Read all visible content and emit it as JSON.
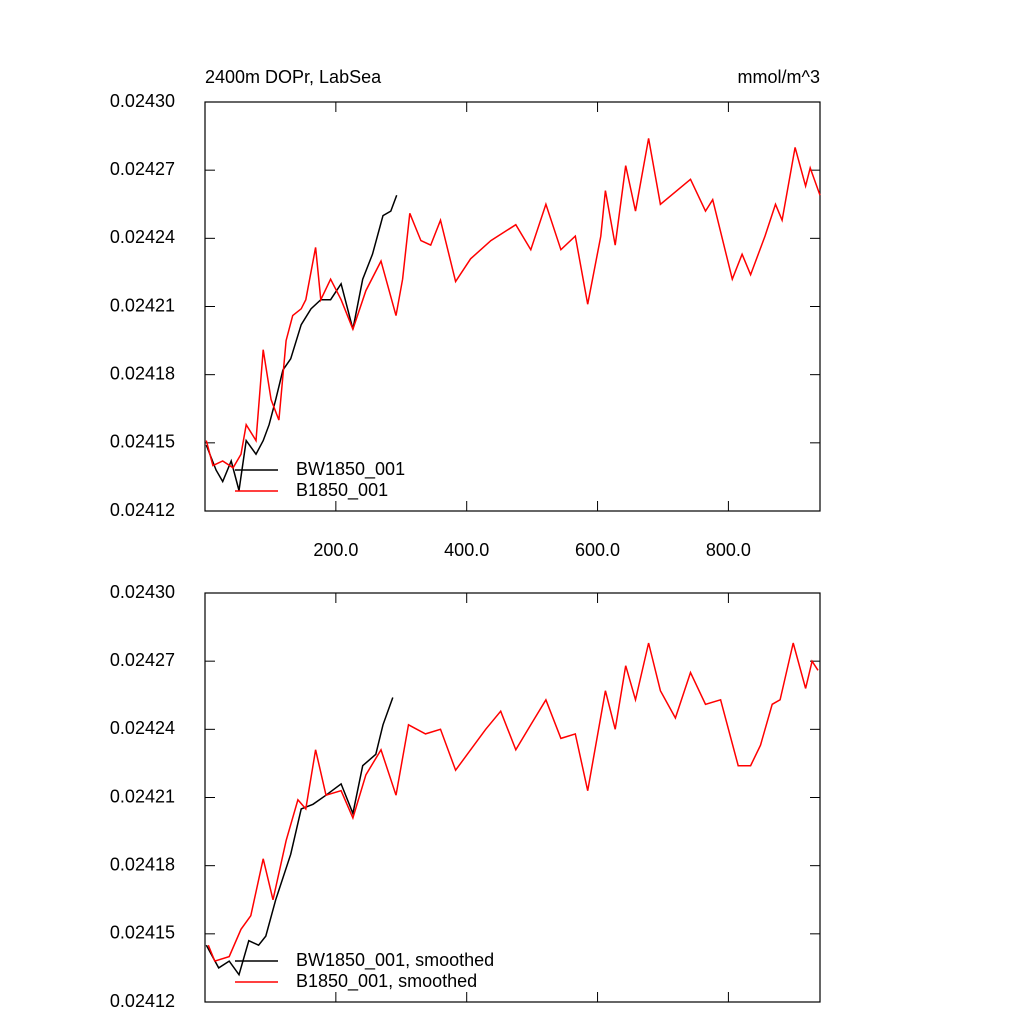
{
  "chart_data": [
    {
      "type": "line",
      "title": "2400m DOPr, LabSea",
      "units": "mmol/m^3",
      "xlim": [
        0,
        940
      ],
      "ylim": [
        0.02412,
        0.0243
      ],
      "xticks": [
        {
          "value": 200,
          "label": "200.0"
        },
        {
          "value": 400,
          "label": "400.0"
        },
        {
          "value": 600,
          "label": "600.0"
        },
        {
          "value": 800,
          "label": "800.0"
        }
      ],
      "xticklabels": true,
      "yticks": [
        {
          "value": 0.02412,
          "label": "0.02412"
        },
        {
          "value": 0.02415,
          "label": "0.02415"
        },
        {
          "value": 0.02418,
          "label": "0.02418"
        },
        {
          "value": 0.02421,
          "label": "0.02421"
        },
        {
          "value": 0.02424,
          "label": "0.02424"
        },
        {
          "value": 0.02427,
          "label": "0.02427"
        },
        {
          "value": 0.0243,
          "label": "0.02430"
        }
      ],
      "legend": "lower left",
      "series": [
        {
          "name": "BW1850_001",
          "color": "#000000",
          "x": [
            2,
            17,
            27,
            40,
            52,
            63,
            78,
            89,
            98,
            108,
            119,
            131,
            147,
            162,
            177,
            192,
            208,
            226,
            241,
            256,
            272,
            284,
            293
          ],
          "values": [
            0.024149,
            0.024138,
            0.024133,
            0.024142,
            0.024129,
            0.024151,
            0.024145,
            0.024151,
            0.024158,
            0.024169,
            0.024182,
            0.024187,
            0.024202,
            0.024209,
            0.024213,
            0.024213,
            0.02422,
            0.0242,
            0.024222,
            0.024233,
            0.02425,
            0.024252,
            0.024259
          ]
        },
        {
          "name": "B1850_001",
          "color": "#ff0000",
          "x": [
            2,
            12,
            27,
            43,
            55,
            63,
            78,
            89,
            101,
            113,
            124,
            134,
            147,
            154,
            169,
            177,
            192,
            208,
            226,
            246,
            269,
            292,
            302,
            313,
            330,
            345,
            360,
            383,
            406,
            437,
            475,
            498,
            521,
            544,
            566,
            585,
            605,
            612,
            627,
            643,
            658,
            678,
            696,
            742,
            765,
            776,
            806,
            821,
            834,
            856,
            872,
            882,
            902,
            918,
            925,
            940
          ],
          "values": [
            0.024151,
            0.02414,
            0.024142,
            0.024139,
            0.024145,
            0.024158,
            0.024151,
            0.024191,
            0.024169,
            0.02416,
            0.024195,
            0.024206,
            0.024209,
            0.024213,
            0.024236,
            0.024213,
            0.024222,
            0.024213,
            0.0242,
            0.024217,
            0.02423,
            0.024206,
            0.024222,
            0.024251,
            0.024239,
            0.024237,
            0.024248,
            0.024221,
            0.024231,
            0.024239,
            0.024246,
            0.024235,
            0.024255,
            0.024235,
            0.024241,
            0.024211,
            0.024241,
            0.024261,
            0.024237,
            0.024272,
            0.024252,
            0.024284,
            0.024255,
            0.024266,
            0.024252,
            0.024257,
            0.024222,
            0.024233,
            0.024224,
            0.024241,
            0.024255,
            0.024248,
            0.02428,
            0.024263,
            0.024271,
            0.024259
          ]
        }
      ]
    },
    {
      "type": "line",
      "xlim": [
        0,
        940
      ],
      "ylim": [
        0.02412,
        0.0243
      ],
      "xticks": [
        200,
        400,
        600,
        800
      ],
      "xticklabels": false,
      "yticks": [
        {
          "value": 0.02412,
          "label": "0.02412"
        },
        {
          "value": 0.02415,
          "label": "0.02415"
        },
        {
          "value": 0.02418,
          "label": "0.02418"
        },
        {
          "value": 0.02421,
          "label": "0.02421"
        },
        {
          "value": 0.02424,
          "label": "0.02424"
        },
        {
          "value": 0.02427,
          "label": "0.02427"
        },
        {
          "value": 0.0243,
          "label": "0.02430"
        }
      ],
      "legend": "lower left",
      "series": [
        {
          "name": "BW1850_001, smoothed",
          "color": "#000000",
          "x": [
            2,
            21,
            37,
            52,
            67,
            82,
            93,
            108,
            131,
            147,
            165,
            185,
            208,
            226,
            241,
            261,
            272,
            287
          ],
          "values": [
            0.024145,
            0.024135,
            0.024138,
            0.024132,
            0.024147,
            0.024145,
            0.024149,
            0.024165,
            0.024185,
            0.024205,
            0.024207,
            0.024211,
            0.024216,
            0.024203,
            0.024224,
            0.024229,
            0.024242,
            0.024254
          ]
        },
        {
          "name": "B1850_001, smoothed",
          "color": "#ff0000",
          "x": [
            5,
            15,
            37,
            55,
            70,
            89,
            104,
            124,
            142,
            154,
            169,
            185,
            208,
            226,
            246,
            269,
            292,
            311,
            337,
            360,
            383,
            406,
            429,
            452,
            475,
            498,
            521,
            544,
            566,
            585,
            612,
            627,
            643,
            658,
            678,
            696,
            719,
            742,
            765,
            788,
            815,
            834,
            849,
            867,
            879,
            899,
            918,
            928,
            937
          ],
          "values": [
            0.024145,
            0.024138,
            0.02414,
            0.024152,
            0.024158,
            0.024183,
            0.024165,
            0.024191,
            0.024209,
            0.024205,
            0.024231,
            0.024211,
            0.024213,
            0.024201,
            0.02422,
            0.024231,
            0.024211,
            0.024242,
            0.024238,
            0.02424,
            0.024222,
            0.024231,
            0.02424,
            0.024248,
            0.024231,
            0.024242,
            0.024253,
            0.024236,
            0.024238,
            0.024213,
            0.024257,
            0.02424,
            0.024268,
            0.024253,
            0.024278,
            0.024257,
            0.024245,
            0.024265,
            0.024251,
            0.024253,
            0.024224,
            0.024224,
            0.024233,
            0.024251,
            0.024253,
            0.024278,
            0.024258,
            0.02427,
            0.024266
          ]
        }
      ]
    }
  ]
}
